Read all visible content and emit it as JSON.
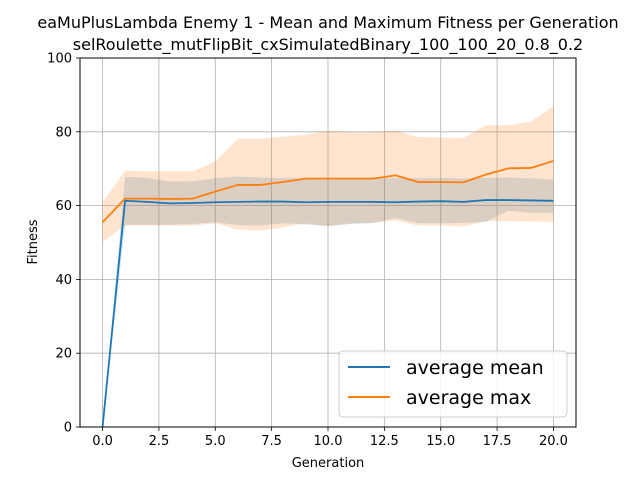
{
  "chart_data": {
    "type": "line",
    "title": "eaMuPlusLambda Enemy 1 - Mean and Maximum Fitness per Generation",
    "subtitle": "selRoulette_mutFlipBit_cxSimulatedBinary_100_100_20_0.8_0.2",
    "xlabel": "Generation",
    "ylabel": "Fitness",
    "xlim": [
      -1.0,
      21.0
    ],
    "ylim": [
      0,
      100
    ],
    "xticks": [
      0.0,
      2.5,
      5.0,
      7.5,
      10.0,
      12.5,
      15.0,
      17.5,
      20.0
    ],
    "xtick_labels": [
      "0.0",
      "2.5",
      "5.0",
      "7.5",
      "10.0",
      "12.5",
      "15.0",
      "17.5",
      "20.0"
    ],
    "yticks": [
      0,
      20,
      40,
      60,
      80,
      100
    ],
    "ytick_labels": [
      "0",
      "20",
      "40",
      "60",
      "80",
      "100"
    ],
    "grid": true,
    "legend_position": "lower-right",
    "x": [
      0,
      1,
      2,
      3,
      4,
      5,
      6,
      7,
      8,
      9,
      10,
      11,
      12,
      13,
      14,
      15,
      16,
      17,
      18,
      19,
      20
    ],
    "series": [
      {
        "name": "average mean",
        "color": "#1f77b4",
        "band_color": "#1f77b4",
        "values": [
          0.0,
          61.3,
          61.0,
          60.6,
          60.7,
          60.9,
          61.0,
          61.1,
          61.1,
          60.9,
          61.0,
          61.0,
          61.0,
          60.9,
          61.1,
          61.2,
          61.0,
          61.5,
          61.5,
          61.4,
          61.3
        ],
        "band_lower": [
          0.0,
          54.8,
          54.8,
          54.8,
          55.0,
          55.5,
          54.7,
          54.6,
          55.2,
          54.9,
          54.5,
          55.0,
          55.3,
          56.6,
          55.2,
          55.2,
          55.3,
          55.6,
          58.6,
          58.0,
          58.0
        ],
        "band_upper": [
          0.0,
          67.8,
          67.5,
          66.5,
          66.6,
          67.4,
          67.9,
          67.6,
          67.4,
          67.4,
          67.6,
          67.5,
          67.4,
          67.4,
          67.4,
          67.5,
          67.3,
          67.5,
          67.6,
          67.4,
          67.0
        ]
      },
      {
        "name": "average max",
        "color": "#ff7f0e",
        "band_color": "#ff7f0e",
        "values": [
          55.5,
          61.9,
          61.9,
          61.8,
          61.9,
          63.8,
          65.6,
          65.6,
          66.4,
          67.3,
          67.3,
          67.3,
          67.3,
          68.2,
          66.4,
          66.4,
          66.3,
          68.4,
          70.1,
          70.2,
          72.1
        ],
        "band_lower": [
          50.1,
          54.6,
          54.6,
          54.6,
          54.6,
          55.2,
          53.5,
          53.2,
          54.1,
          55.2,
          54.3,
          55.2,
          55.3,
          56.0,
          54.6,
          54.6,
          54.3,
          55.8,
          55.8,
          55.7,
          55.6
        ],
        "band_upper": [
          60.9,
          69.5,
          69.3,
          69.3,
          69.3,
          72.0,
          78.1,
          78.1,
          78.7,
          79.2,
          80.4,
          79.9,
          79.9,
          80.3,
          78.6,
          78.5,
          78.3,
          81.8,
          81.8,
          82.8,
          86.9
        ]
      }
    ]
  }
}
